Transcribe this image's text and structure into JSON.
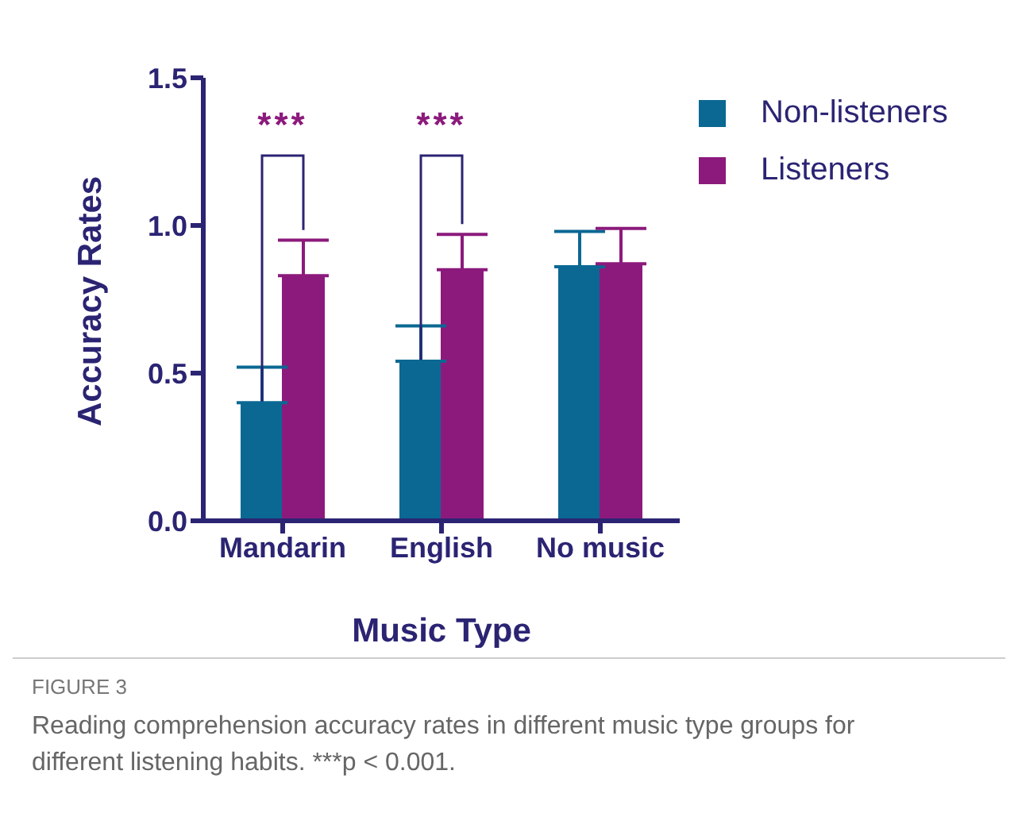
{
  "chart_data": {
    "type": "bar",
    "xlabel": "Music Type",
    "ylabel": "Accuracy Rates",
    "categories": [
      "Mandarin",
      "English",
      "No music"
    ],
    "series": [
      {
        "name": "Non-listeners",
        "color": "#0b6893",
        "values": [
          0.4,
          0.54,
          0.86
        ],
        "errors": [
          [
            0.4,
            0.52
          ],
          [
            0.54,
            0.66
          ],
          [
            0.86,
            0.98
          ]
        ]
      },
      {
        "name": "Listeners",
        "color": "#8c1a7c",
        "values": [
          0.83,
          0.85,
          0.87
        ],
        "errors": [
          [
            0.83,
            0.95
          ],
          [
            0.85,
            0.97
          ],
          [
            0.87,
            0.99
          ]
        ]
      }
    ],
    "ylim": [
      0,
      1.5
    ],
    "yticks": [
      {
        "value": 0,
        "label": "0.0"
      },
      {
        "value": 0.5,
        "label": "0.5"
      },
      {
        "value": 1,
        "label": "1.0"
      },
      {
        "value": 1.5,
        "label": "1.5"
      }
    ],
    "legend": "top right",
    "annotations": [
      "***",
      "***",
      "FIGURE 3",
      "Reading comprehension accuracy rates in different music type groups for different listening habits. ***p < 0.001."
    ]
  }
}
